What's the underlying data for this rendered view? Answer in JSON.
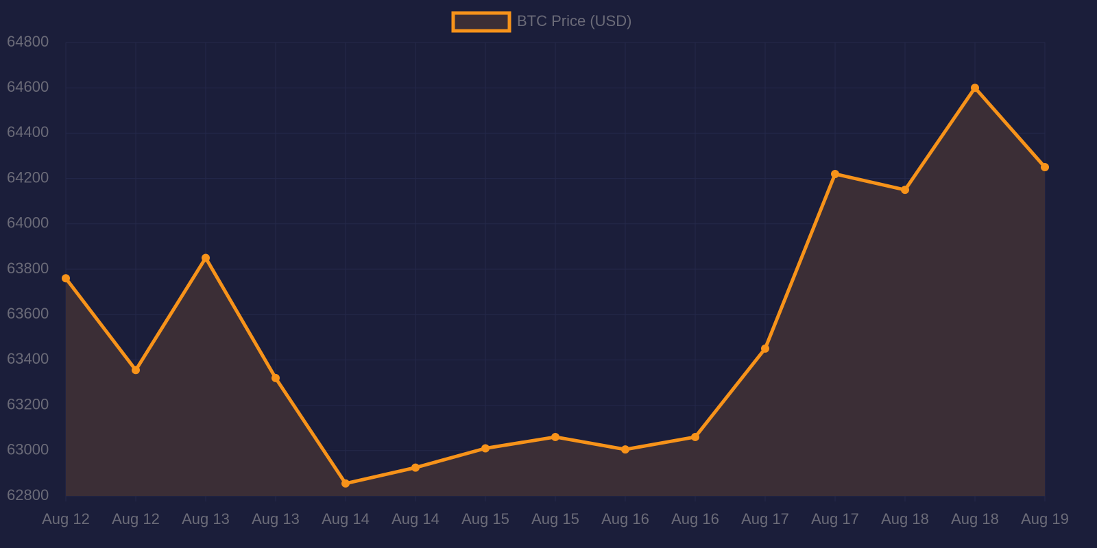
{
  "chart_data": {
    "type": "line",
    "categories": [
      "Aug 12",
      "Aug 12",
      "Aug 13",
      "Aug 13",
      "Aug 14",
      "Aug 14",
      "Aug 15",
      "Aug 15",
      "Aug 16",
      "Aug 16",
      "Aug 17",
      "Aug 17",
      "Aug 18",
      "Aug 18",
      "Aug 19"
    ],
    "series": [
      {
        "name": "BTC Price (USD)",
        "color": "#f7931a",
        "fill_color": "#3b2e36",
        "values": [
          63760,
          63355,
          63850,
          63320,
          62855,
          62925,
          63010,
          63060,
          63005,
          63060,
          63450,
          64220,
          64150,
          64600,
          64250
        ]
      }
    ],
    "ylim": [
      62800,
      64800
    ],
    "yticks": [
      62800,
      63000,
      63200,
      63400,
      63600,
      63800,
      64000,
      64200,
      64400,
      64600,
      64800
    ],
    "grid": true,
    "fill": true,
    "legend": "top"
  }
}
